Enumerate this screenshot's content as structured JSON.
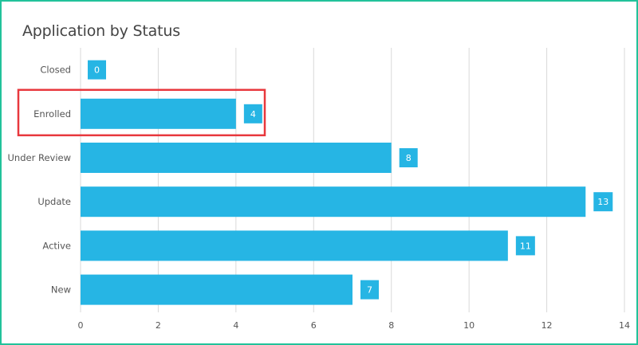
{
  "chart_data": {
    "type": "bar",
    "orientation": "horizontal",
    "title": "Application by Status",
    "categories": [
      "Closed",
      "Enrolled",
      "Under Review",
      "Update",
      "Active",
      "New"
    ],
    "values": [
      0,
      4,
      8,
      13,
      11,
      7
    ],
    "xlim": [
      0,
      14
    ],
    "x_ticks": [
      0,
      2,
      4,
      6,
      8,
      10,
      12,
      14
    ],
    "grid": true,
    "data_labels": true,
    "highlighted_category": "Enrolled"
  },
  "colors": {
    "bar": "#26b5e4",
    "grid": "#d9d9d9",
    "highlight_box": "#e8383d",
    "frame": "#22c29a"
  }
}
